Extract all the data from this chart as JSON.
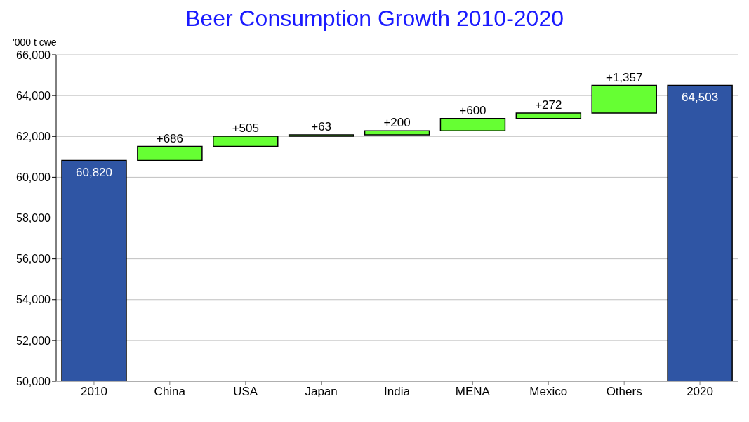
{
  "chart_data": {
    "type": "bar",
    "title": "Beer Consumption Growth 2010-2020",
    "ylabel": "'000 t cwe",
    "categories": [
      "2010",
      "China",
      "USA",
      "Japan",
      "India",
      "MENA",
      "Mexico",
      "Others",
      "2020"
    ],
    "values": [
      60820,
      686,
      505,
      63,
      200,
      600,
      272,
      1357,
      64503
    ],
    "base": [
      null,
      60820,
      61506,
      62011,
      62074,
      62274,
      62874,
      63146,
      null
    ],
    "colors": [
      "#2f55a4",
      "#66ff33",
      "#66ff33",
      "#66ff33",
      "#66ff33",
      "#66ff33",
      "#66ff33",
      "#66ff33",
      "#2f55a4"
    ],
    "value_labels": [
      "60,820",
      "+686",
      "+505",
      "+63",
      "+200",
      "+600",
      "+272",
      "+1,357",
      "64,503"
    ],
    "ylim": [
      50000,
      66000
    ],
    "yticks": [
      {
        "value": 50000,
        "label": "50,000"
      },
      {
        "value": 52000,
        "label": "52,000"
      },
      {
        "value": 54000,
        "label": "54,000"
      },
      {
        "value": 56000,
        "label": "56,000"
      },
      {
        "value": 58000,
        "label": "58,000"
      },
      {
        "value": 60000,
        "label": "60,000"
      },
      {
        "value": 62000,
        "label": "62,000"
      },
      {
        "value": 64000,
        "label": "64,000"
      },
      {
        "value": 66000,
        "label": "66,000"
      }
    ],
    "grid": "y"
  }
}
